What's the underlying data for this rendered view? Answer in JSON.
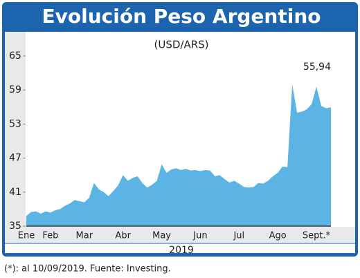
{
  "chart_data": {
    "type": "area",
    "title": "Evolución Peso Argentino",
    "subtitle": "(USD/ARS)",
    "x_label": "2019",
    "footnote": "(*): al 10/09/2019. Fuente: Investing.",
    "color": "#5cb4e4",
    "categories": [
      "Ene",
      null,
      null,
      null,
      null,
      "Feb",
      null,
      null,
      null,
      null,
      null,
      null,
      "Mar",
      null,
      null,
      null,
      null,
      null,
      null,
      null,
      "Abr",
      null,
      null,
      null,
      null,
      null,
      null,
      null,
      "May",
      null,
      null,
      null,
      null,
      null,
      null,
      null,
      "Jun",
      null,
      null,
      null,
      null,
      null,
      null,
      null,
      "Jul",
      null,
      null,
      null,
      null,
      null,
      null,
      null,
      "Ago",
      null,
      null,
      null,
      null,
      null,
      null,
      null,
      "Sept.*",
      null,
      null,
      null
    ],
    "values": [
      36.8,
      37.5,
      37.6,
      37.2,
      37.6,
      37.4,
      37.8,
      38.0,
      38.6,
      39.0,
      39.6,
      39.4,
      39.2,
      40.0,
      42.6,
      41.5,
      41.0,
      40.3,
      41.2,
      42.2,
      44.0,
      43.0,
      43.5,
      43.8,
      42.6,
      41.8,
      42.3,
      43.0,
      45.9,
      44.4,
      45.0,
      45.2,
      44.9,
      45.1,
      44.8,
      44.9,
      44.7,
      44.9,
      44.8,
      43.8,
      44.0,
      43.3,
      42.7,
      43.0,
      42.5,
      41.9,
      41.8,
      41.9,
      42.6,
      42.5,
      43.0,
      43.8,
      44.4,
      45.5,
      45.4,
      60.0,
      55.0,
      55.2,
      55.6,
      56.5,
      59.6,
      56.2,
      55.8,
      55.94
    ],
    "value_labels": [
      null,
      null,
      null,
      null,
      null,
      null,
      null,
      null,
      null,
      null,
      null,
      null,
      null,
      null,
      null,
      null,
      null,
      null,
      null,
      null,
      null,
      null,
      null,
      null,
      null,
      null,
      null,
      null,
      null,
      null,
      null,
      null,
      null,
      null,
      null,
      null,
      null,
      null,
      null,
      null,
      null,
      null,
      null,
      null,
      null,
      null,
      null,
      null,
      null,
      null,
      null,
      null,
      null,
      null,
      null,
      null,
      null,
      null,
      null,
      null,
      null,
      null,
      null,
      "55,94"
    ],
    "ylim": [
      35,
      65
    ],
    "yticks": [
      35,
      41,
      47,
      53,
      59,
      65
    ]
  }
}
